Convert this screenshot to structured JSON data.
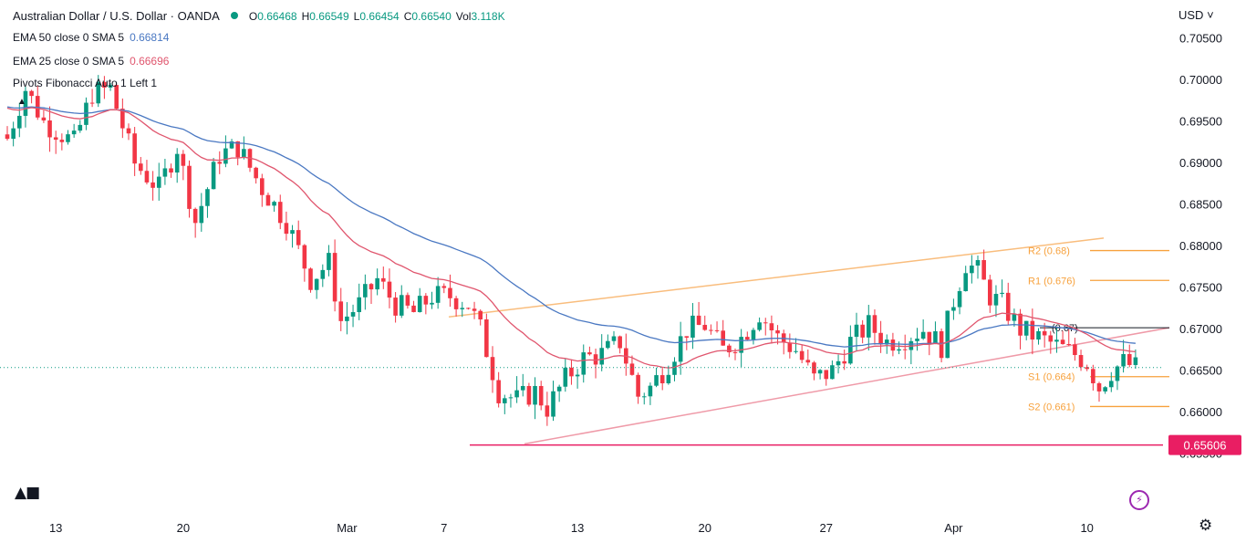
{
  "header": {
    "title": "Australian Dollar / U.S. Dollar · OANDA",
    "open_label": "O",
    "open": "0.66468",
    "high_label": "H",
    "high": "0.66549",
    "low_label": "L",
    "low": "0.66454",
    "close_label": "C",
    "close": "0.66540",
    "vol_label": "Vol",
    "vol": "3.118K",
    "currency": "USD"
  },
  "indicators": [
    {
      "label": "EMA 50 close 0 SMA 5",
      "value": "0.66814",
      "color": "#4a78c2"
    },
    {
      "label": "EMA 25 close 0 SMA 5",
      "value": "0.66696",
      "color": "#e0566e"
    },
    {
      "label": "Pivots Fibonacci Auto 1 Left 1",
      "value": ""
    }
  ],
  "icons": {
    "logo": "tradingview-logo",
    "lightning": "lightning-icon",
    "settings": "gear-icon",
    "collapse": "chevron-up-icon"
  },
  "chart_data": {
    "type": "candlestick",
    "ylim": [
      0.6525,
      0.7075
    ],
    "y_ticks": [
      "0.70500",
      "0.70000",
      "0.69500",
      "0.69000",
      "0.68500",
      "0.68000",
      "0.67500",
      "0.67000",
      "0.66500",
      "0.66000",
      "0.65500"
    ],
    "x_ticks": [
      "13",
      "20",
      "Mar",
      "7",
      "13",
      "20",
      "27",
      "Apr",
      "10"
    ],
    "last_price": 0.6654,
    "colors": {
      "up": "#089981",
      "down": "#f23645",
      "ema50": "#4a78c2",
      "ema25": "#e0566e",
      "pivot": "#f7a13c",
      "support": "#e91e63",
      "channel_upper": "#f9bd7d",
      "channel_lower": "#ef9aa8"
    },
    "support_level": {
      "value": 0.65606,
      "label": "0.65606"
    },
    "pivots": [
      {
        "label": "R2 (0.68)",
        "value": 0.6795
      },
      {
        "label": "R1 (0.676)",
        "value": 0.6759
      },
      {
        "label": "(0.67)",
        "value": 0.6702
      },
      {
        "label": "S1 (0.664)",
        "value": 0.6643
      },
      {
        "label": "S2 (0.661)",
        "value": 0.6607
      }
    ],
    "ohlc_anchors": [
      [
        0,
        0.693
      ],
      [
        3,
        0.699
      ],
      [
        6,
        0.695
      ],
      [
        11,
        0.6925
      ],
      [
        14,
        0.6985
      ],
      [
        17,
        0.699
      ],
      [
        21,
        0.69
      ],
      [
        25,
        0.687
      ],
      [
        28,
        0.692
      ],
      [
        31,
        0.683
      ],
      [
        35,
        0.691
      ],
      [
        38,
        0.692
      ],
      [
        42,
        0.687
      ],
      [
        46,
        0.683
      ],
      [
        50,
        0.676
      ],
      [
        53,
        0.678
      ],
      [
        55,
        0.671
      ],
      [
        58,
        0.673
      ],
      [
        61,
        0.676
      ],
      [
        64,
        0.673
      ],
      [
        67,
        0.672
      ],
      [
        70,
        0.674
      ],
      [
        73,
        0.674
      ],
      [
        76,
        0.673
      ],
      [
        78,
        0.67
      ],
      [
        81,
        0.6625
      ],
      [
        84,
        0.6615
      ],
      [
        87,
        0.6625
      ],
      [
        89,
        0.6605
      ],
      [
        92,
        0.664
      ],
      [
        95,
        0.6665
      ],
      [
        98,
        0.667
      ],
      [
        101,
        0.6685
      ],
      [
        104,
        0.662
      ],
      [
        106,
        0.663
      ],
      [
        109,
        0.666
      ],
      [
        112,
        0.67
      ],
      [
        115,
        0.6705
      ],
      [
        118,
        0.6675
      ],
      [
        121,
        0.669
      ],
      [
        124,
        0.672
      ],
      [
        127,
        0.669
      ],
      [
        130,
        0.6675
      ],
      [
        133,
        0.664
      ],
      [
        136,
        0.665
      ],
      [
        139,
        0.6685
      ],
      [
        142,
        0.6705
      ],
      [
        145,
        0.6685
      ],
      [
        148,
        0.669
      ],
      [
        151,
        0.67
      ],
      [
        154,
        0.668
      ],
      [
        156,
        0.6735
      ],
      [
        158,
        0.678
      ],
      [
        160,
        0.677
      ],
      [
        162,
        0.674
      ],
      [
        164,
        0.673
      ],
      [
        167,
        0.67
      ],
      [
        170,
        0.669
      ],
      [
        173,
        0.668
      ],
      [
        176,
        0.667
      ],
      [
        178,
        0.666
      ],
      [
        180,
        0.663
      ],
      [
        182,
        0.665
      ],
      [
        184,
        0.666
      ],
      [
        186,
        0.6654
      ]
    ],
    "series": [
      {
        "name": "EMA 50 close 0 SMA 5",
        "period": 50
      },
      {
        "name": "EMA 25 close 0 SMA 5",
        "period": 25
      }
    ]
  }
}
